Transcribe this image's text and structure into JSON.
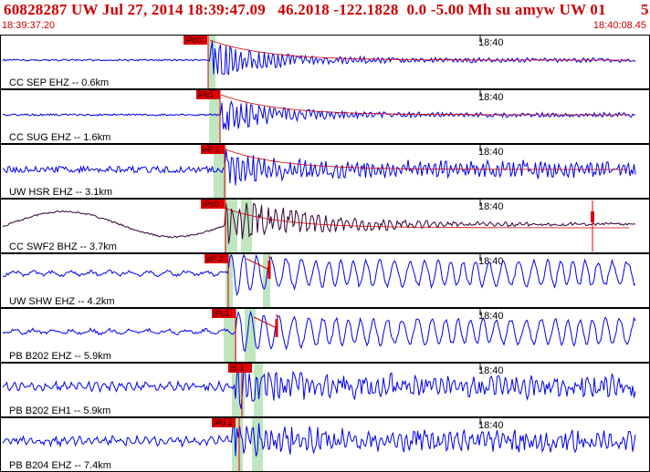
{
  "header": {
    "title": "60828287 UW Jul 27, 2014 18:39:47.09   46.2018 -122.1828  0.0 -5.00 Mh su amyw UW 01",
    "page_number": "5",
    "start_time": "18:39:37.20",
    "end_time": "18:40:08.45"
  },
  "colors": {
    "header_text": "#cc0000",
    "trace_default": "#0000ee",
    "trace_broadband": "#330033",
    "pick_flag": "#dd0000",
    "pick_band": "#bfe6bf",
    "coda_line": "#cc0000",
    "frame": "#000000"
  },
  "time_marker_label": "18:40",
  "channels": [
    {
      "label": "CC SEP EHZ -- 0.6km",
      "pick": "iPc0",
      "color": "trace",
      "style": "early"
    },
    {
      "label": "CC SUG EHZ -- 1.6km",
      "pick": "iPc1",
      "color": "trace",
      "style": "early"
    },
    {
      "label": "UW HSR EHZ -- 3.1km",
      "pick": "eP 1",
      "color": "trace",
      "style": "band"
    },
    {
      "label": "CC SWF2 BHZ -- 3.7km",
      "pick": "iPc0",
      "color": "broadband",
      "style": "swf"
    },
    {
      "label": "UW SHW EHZ -- 4.2km",
      "pick": "eP 2",
      "color": "trace",
      "style": "ringy"
    },
    {
      "label": "PB B202 EHZ -- 5.9km",
      "pick": "iPc1",
      "color": "trace",
      "style": "ringy"
    },
    {
      "label": "PB B202 EH1 -- 5.9km",
      "pick": "iS 1",
      "color": "trace",
      "style": "noisy"
    },
    {
      "label": "PB B204 EHZ -- 7.4km",
      "pick": "iPd 1",
      "color": "trace",
      "style": "noisy"
    }
  ]
}
